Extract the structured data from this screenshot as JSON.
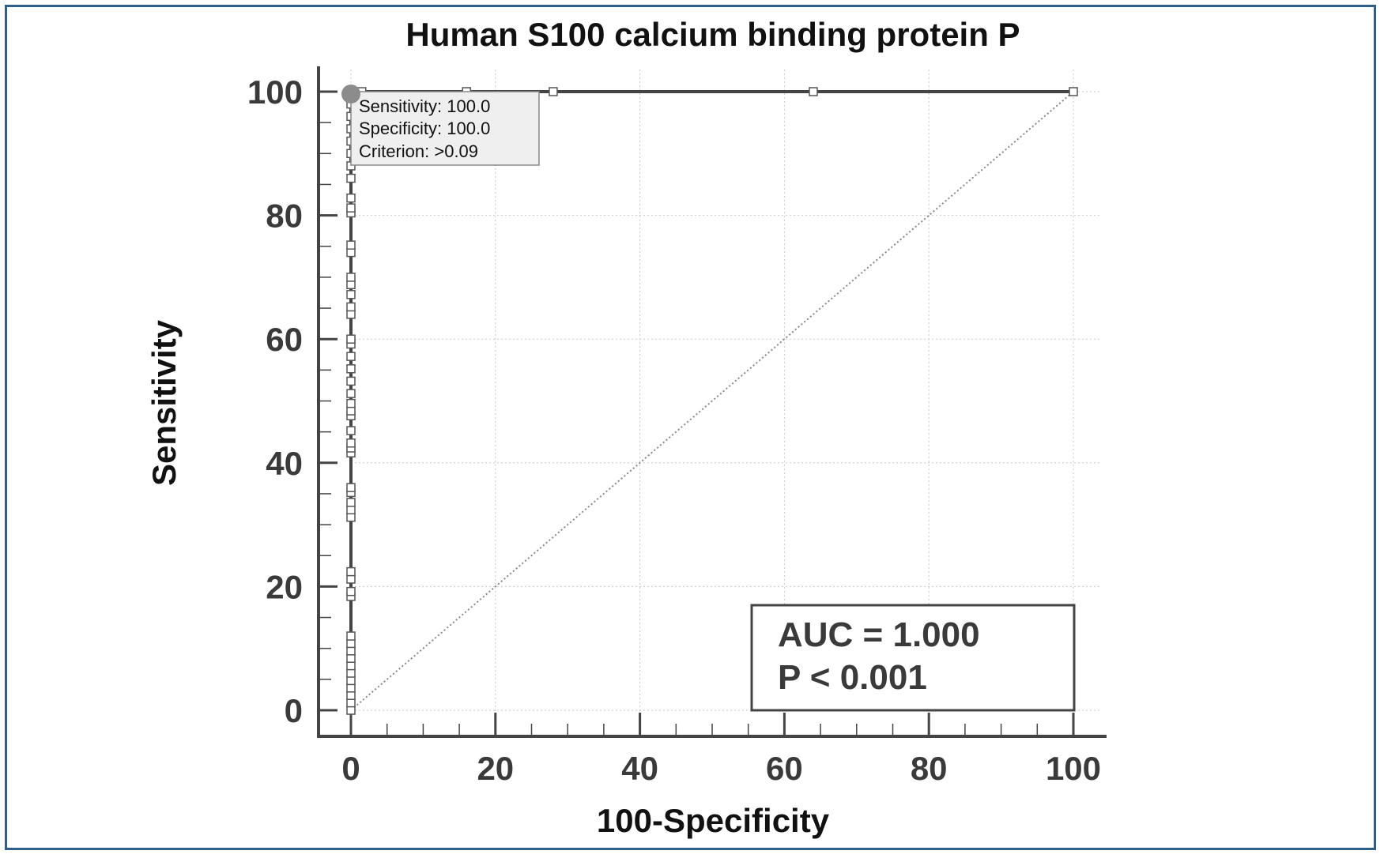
{
  "chart_data": {
    "type": "line",
    "title": "Human S100 calcium binding protein P",
    "xlabel": "100-Specificity",
    "ylabel": "Sensitivity",
    "xlim": [
      0,
      100
    ],
    "ylim": [
      0,
      100
    ],
    "x_ticks": [
      "0",
      "20",
      "40",
      "60",
      "80",
      "100"
    ],
    "y_ticks": [
      "0",
      "20",
      "40",
      "60",
      "80",
      "100"
    ],
    "grid": true,
    "series": [
      {
        "type": "roc-curve",
        "color": "#444444",
        "points": [
          [
            0,
            0
          ],
          [
            0,
            1.2
          ],
          [
            0,
            2.4
          ],
          [
            0,
            3.6
          ],
          [
            0,
            4.8
          ],
          [
            0,
            6.0
          ],
          [
            0,
            7.2
          ],
          [
            0,
            8.4
          ],
          [
            0,
            9.6
          ],
          [
            0,
            10.8
          ],
          [
            0,
            12.0
          ],
          [
            0,
            18.4
          ],
          [
            0,
            19.2
          ],
          [
            0,
            21.2
          ],
          [
            0,
            22.4
          ],
          [
            0,
            31.2
          ],
          [
            0,
            32.4
          ],
          [
            0,
            33.6
          ],
          [
            0,
            35.2
          ],
          [
            0,
            36.0
          ],
          [
            0,
            41.6
          ],
          [
            0,
            42.4
          ],
          [
            0,
            43.2
          ],
          [
            0,
            45.2
          ],
          [
            0,
            47.6
          ],
          [
            0,
            48.4
          ],
          [
            0,
            49.6
          ],
          [
            0,
            51.2
          ],
          [
            0,
            53.2
          ],
          [
            0,
            55.2
          ],
          [
            0,
            57.2
          ],
          [
            0,
            59.2
          ],
          [
            0,
            60.0
          ],
          [
            0,
            64.0
          ],
          [
            0,
            65.2
          ],
          [
            0,
            67.2
          ],
          [
            0,
            68.8
          ],
          [
            0,
            70.0
          ],
          [
            0,
            74.0
          ],
          [
            0,
            75.2
          ],
          [
            0,
            80.4
          ],
          [
            0,
            81.2
          ],
          [
            0,
            82.8
          ],
          [
            0,
            86.0
          ],
          [
            0,
            88.0
          ],
          [
            0,
            90.0
          ],
          [
            0,
            92.0
          ],
          [
            0,
            94.0
          ],
          [
            0,
            96.0
          ],
          [
            0,
            98.0
          ],
          [
            0,
            100
          ],
          [
            1.5,
            100
          ],
          [
            16,
            100
          ],
          [
            28,
            100
          ],
          [
            64,
            100
          ],
          [
            100,
            100
          ]
        ]
      },
      {
        "type": "reference-diagonal",
        "color": "#888888",
        "points": [
          [
            0,
            0
          ],
          [
            100,
            100
          ]
        ]
      }
    ],
    "highlight_point": {
      "x": 0,
      "y": 100,
      "color": "#8c8c8c",
      "tooltip_lines": [
        "Sensitivity: 100.0",
        "Specificity: 100.0",
        "Criterion: >0.09"
      ]
    },
    "annotation": {
      "lines": [
        "AUC = 1.000",
        "P < 0.001"
      ],
      "placement": "bottom-right"
    }
  }
}
